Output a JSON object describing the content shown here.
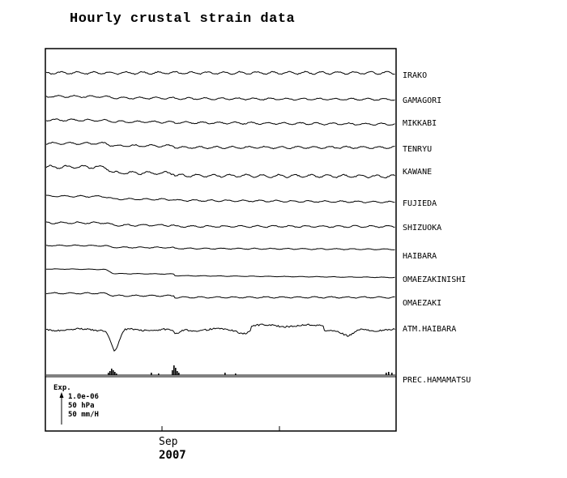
{
  "title": "Hourly crustal strain data",
  "colors": {
    "line": "#000000",
    "background": "#ffffff"
  },
  "chart_data": {
    "type": "line",
    "title": "Hourly crustal strain data",
    "x_tick_label": "Sep",
    "year_label": "2007",
    "stations": [
      "IRAKO",
      "GAMAGORI",
      "MIKKABI",
      "TENRYU",
      "KAWANE",
      "FUJIEDA",
      "SHIZUOKA",
      "HAIBARA",
      "OMAEZAKINISHI",
      "OMAEZAKI",
      "ATM.HAIBARA",
      "PREC.HAMAMATSU"
    ],
    "scale_legend": {
      "header": "Exp.",
      "strain": "1.0e-06",
      "pressure": "50 hPa",
      "precipitation": "50 mm/H"
    },
    "grid": false
  }
}
